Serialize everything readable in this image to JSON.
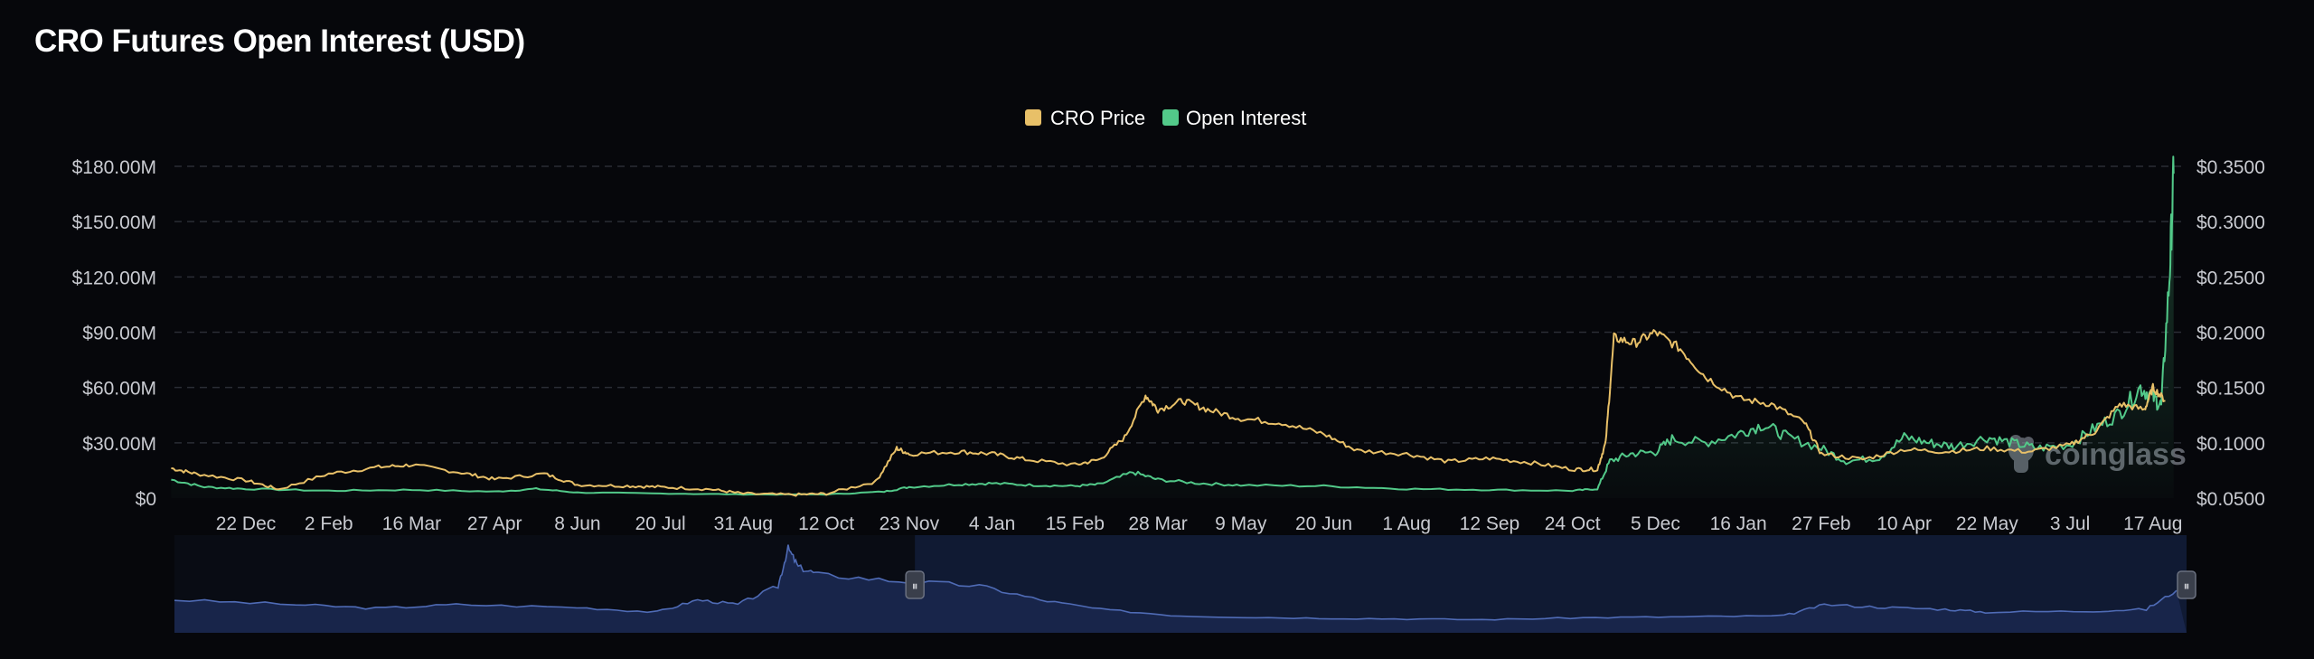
{
  "title": "CRO Futures Open Interest (USD)",
  "watermark": "coinglass",
  "colors": {
    "background": "#06070b",
    "price": "#e8c068",
    "open_interest": "#52c989",
    "navigator_line": "#4f6bb5",
    "navigator_fill": "#18254a",
    "navigator_selected": "#101a33"
  },
  "chart_data": {
    "type": "line",
    "title": "CRO Futures Open Interest (USD)",
    "legend_position": "top-center",
    "grid": true,
    "x_ticks": [
      "22 Dec",
      "2 Feb",
      "16 Mar",
      "27 Apr",
      "8 Jun",
      "20 Jul",
      "31 Aug",
      "12 Oct",
      "23 Nov",
      "4 Jan",
      "15 Feb",
      "28 Mar",
      "9 May",
      "20 Jun",
      "1 Aug",
      "12 Sep",
      "24 Oct",
      "5 Dec",
      "16 Jan",
      "27 Feb",
      "10 Apr",
      "22 May",
      "3 Jul",
      "17 Aug"
    ],
    "y_left": {
      "ticks": [
        "$0",
        "$30.00M",
        "$60.00M",
        "$90.00M",
        "$120.00M",
        "$150.00M",
        "$180.00M"
      ],
      "range": [
        0,
        180
      ]
    },
    "y_right": {
      "ticks": [
        "$0.0500",
        "$0.1000",
        "$0.1500",
        "$0.2000",
        "$0.2500",
        "$0.3000",
        "$0.3500"
      ],
      "range": [
        0.05,
        0.35
      ]
    },
    "x_index": [
      0,
      1,
      2,
      3,
      4,
      5,
      6,
      7,
      8,
      9,
      10,
      11,
      12,
      13,
      14,
      15,
      16,
      17,
      18,
      19,
      20,
      21,
      22,
      23
    ],
    "series": [
      {
        "name": "CRO Price",
        "axis": "right",
        "points": [
          [
            -0.9,
            0.077
          ],
          [
            -0.6,
            0.072
          ],
          [
            0,
            0.066
          ],
          [
            0.4,
            0.058
          ],
          [
            1,
            0.072
          ],
          [
            1.6,
            0.078
          ],
          [
            2,
            0.08
          ],
          [
            2.6,
            0.073
          ],
          [
            3,
            0.067
          ],
          [
            3.6,
            0.072
          ],
          [
            4,
            0.062
          ],
          [
            4.6,
            0.061
          ],
          [
            5,
            0.06
          ],
          [
            5.6,
            0.058
          ],
          [
            6,
            0.054
          ],
          [
            6.6,
            0.053
          ],
          [
            7,
            0.054
          ],
          [
            7.6,
            0.065
          ],
          [
            7.85,
            0.095
          ],
          [
            8,
            0.09
          ],
          [
            8.6,
            0.092
          ],
          [
            9,
            0.09
          ],
          [
            9.4,
            0.085
          ],
          [
            10,
            0.08
          ],
          [
            10.3,
            0.085
          ],
          [
            10.6,
            0.105
          ],
          [
            10.85,
            0.143
          ],
          [
            11,
            0.13
          ],
          [
            11.3,
            0.138
          ],
          [
            11.6,
            0.13
          ],
          [
            12,
            0.122
          ],
          [
            12.5,
            0.118
          ],
          [
            13,
            0.108
          ],
          [
            13.4,
            0.093
          ],
          [
            14,
            0.09
          ],
          [
            14.5,
            0.083
          ],
          [
            15,
            0.086
          ],
          [
            15.5,
            0.082
          ],
          [
            16,
            0.076
          ],
          [
            16.3,
            0.076
          ],
          [
            16.4,
            0.1
          ],
          [
            16.5,
            0.195
          ],
          [
            16.75,
            0.19
          ],
          [
            17,
            0.2
          ],
          [
            17.3,
            0.185
          ],
          [
            17.6,
            0.16
          ],
          [
            18,
            0.14
          ],
          [
            18.4,
            0.135
          ],
          [
            18.8,
            0.118
          ],
          [
            19,
            0.09
          ],
          [
            19.5,
            0.085
          ],
          [
            20,
            0.094
          ],
          [
            20.5,
            0.092
          ],
          [
            21,
            0.095
          ],
          [
            21.5,
            0.092
          ],
          [
            22,
            0.098
          ],
          [
            22.3,
            0.11
          ],
          [
            22.6,
            0.135
          ],
          [
            22.9,
            0.13
          ],
          [
            23,
            0.15
          ],
          [
            23.15,
            0.138
          ]
        ]
      },
      {
        "name": "Open Interest",
        "axis": "left",
        "points": [
          [
            -0.9,
            10
          ],
          [
            -0.5,
            6
          ],
          [
            0,
            5
          ],
          [
            1,
            4
          ],
          [
            2,
            4.5
          ],
          [
            3,
            3.5
          ],
          [
            3.5,
            5
          ],
          [
            4,
            3
          ],
          [
            5,
            2.5
          ],
          [
            6,
            2
          ],
          [
            7,
            2
          ],
          [
            7.7,
            3.5
          ],
          [
            8,
            6
          ],
          [
            8.6,
            7.5
          ],
          [
            9,
            8
          ],
          [
            9.5,
            7
          ],
          [
            10,
            6.5
          ],
          [
            10.3,
            7.5
          ],
          [
            10.7,
            14
          ],
          [
            11,
            10
          ],
          [
            11.5,
            8
          ],
          [
            12,
            7
          ],
          [
            13,
            6.5
          ],
          [
            14,
            5
          ],
          [
            15,
            4.5
          ],
          [
            16,
            4
          ],
          [
            16.3,
            5
          ],
          [
            16.45,
            20
          ],
          [
            16.7,
            24
          ],
          [
            17,
            25
          ],
          [
            17.2,
            32
          ],
          [
            17.6,
            30
          ],
          [
            18,
            35
          ],
          [
            18.3,
            40
          ],
          [
            18.6,
            33
          ],
          [
            19,
            27
          ],
          [
            19.3,
            20
          ],
          [
            19.7,
            22
          ],
          [
            20,
            33
          ],
          [
            20.3,
            30
          ],
          [
            20.6,
            28
          ],
          [
            21,
            33
          ],
          [
            21.3,
            30
          ],
          [
            21.6,
            27
          ],
          [
            22,
            29
          ],
          [
            22.3,
            38
          ],
          [
            22.6,
            46
          ],
          [
            22.85,
            60
          ],
          [
            23,
            55
          ],
          [
            23.1,
            50
          ],
          [
            23.2,
            120
          ],
          [
            23.25,
            176
          ]
        ]
      }
    ]
  },
  "navigator": {
    "grip_left": "⏸",
    "grip_right": "⏸",
    "points": [
      [
        0,
        0.35
      ],
      [
        0.06,
        0.3
      ],
      [
        0.1,
        0.26
      ],
      [
        0.14,
        0.3
      ],
      [
        0.2,
        0.27
      ],
      [
        0.24,
        0.22
      ],
      [
        0.26,
        0.35
      ],
      [
        0.28,
        0.3
      ],
      [
        0.3,
        0.5
      ],
      [
        0.305,
        0.9
      ],
      [
        0.31,
        0.7
      ],
      [
        0.32,
        0.62
      ],
      [
        0.36,
        0.55
      ],
      [
        0.4,
        0.5
      ],
      [
        0.43,
        0.35
      ],
      [
        0.46,
        0.25
      ],
      [
        0.5,
        0.18
      ],
      [
        0.55,
        0.16
      ],
      [
        0.6,
        0.15
      ],
      [
        0.65,
        0.14
      ],
      [
        0.7,
        0.16
      ],
      [
        0.75,
        0.17
      ],
      [
        0.8,
        0.18
      ],
      [
        0.82,
        0.3
      ],
      [
        0.85,
        0.27
      ],
      [
        0.88,
        0.25
      ],
      [
        0.9,
        0.22
      ],
      [
        0.95,
        0.23
      ],
      [
        0.98,
        0.25
      ],
      [
        0.995,
        0.45
      ]
    ],
    "selection": [
      0.368,
      1.0
    ]
  }
}
